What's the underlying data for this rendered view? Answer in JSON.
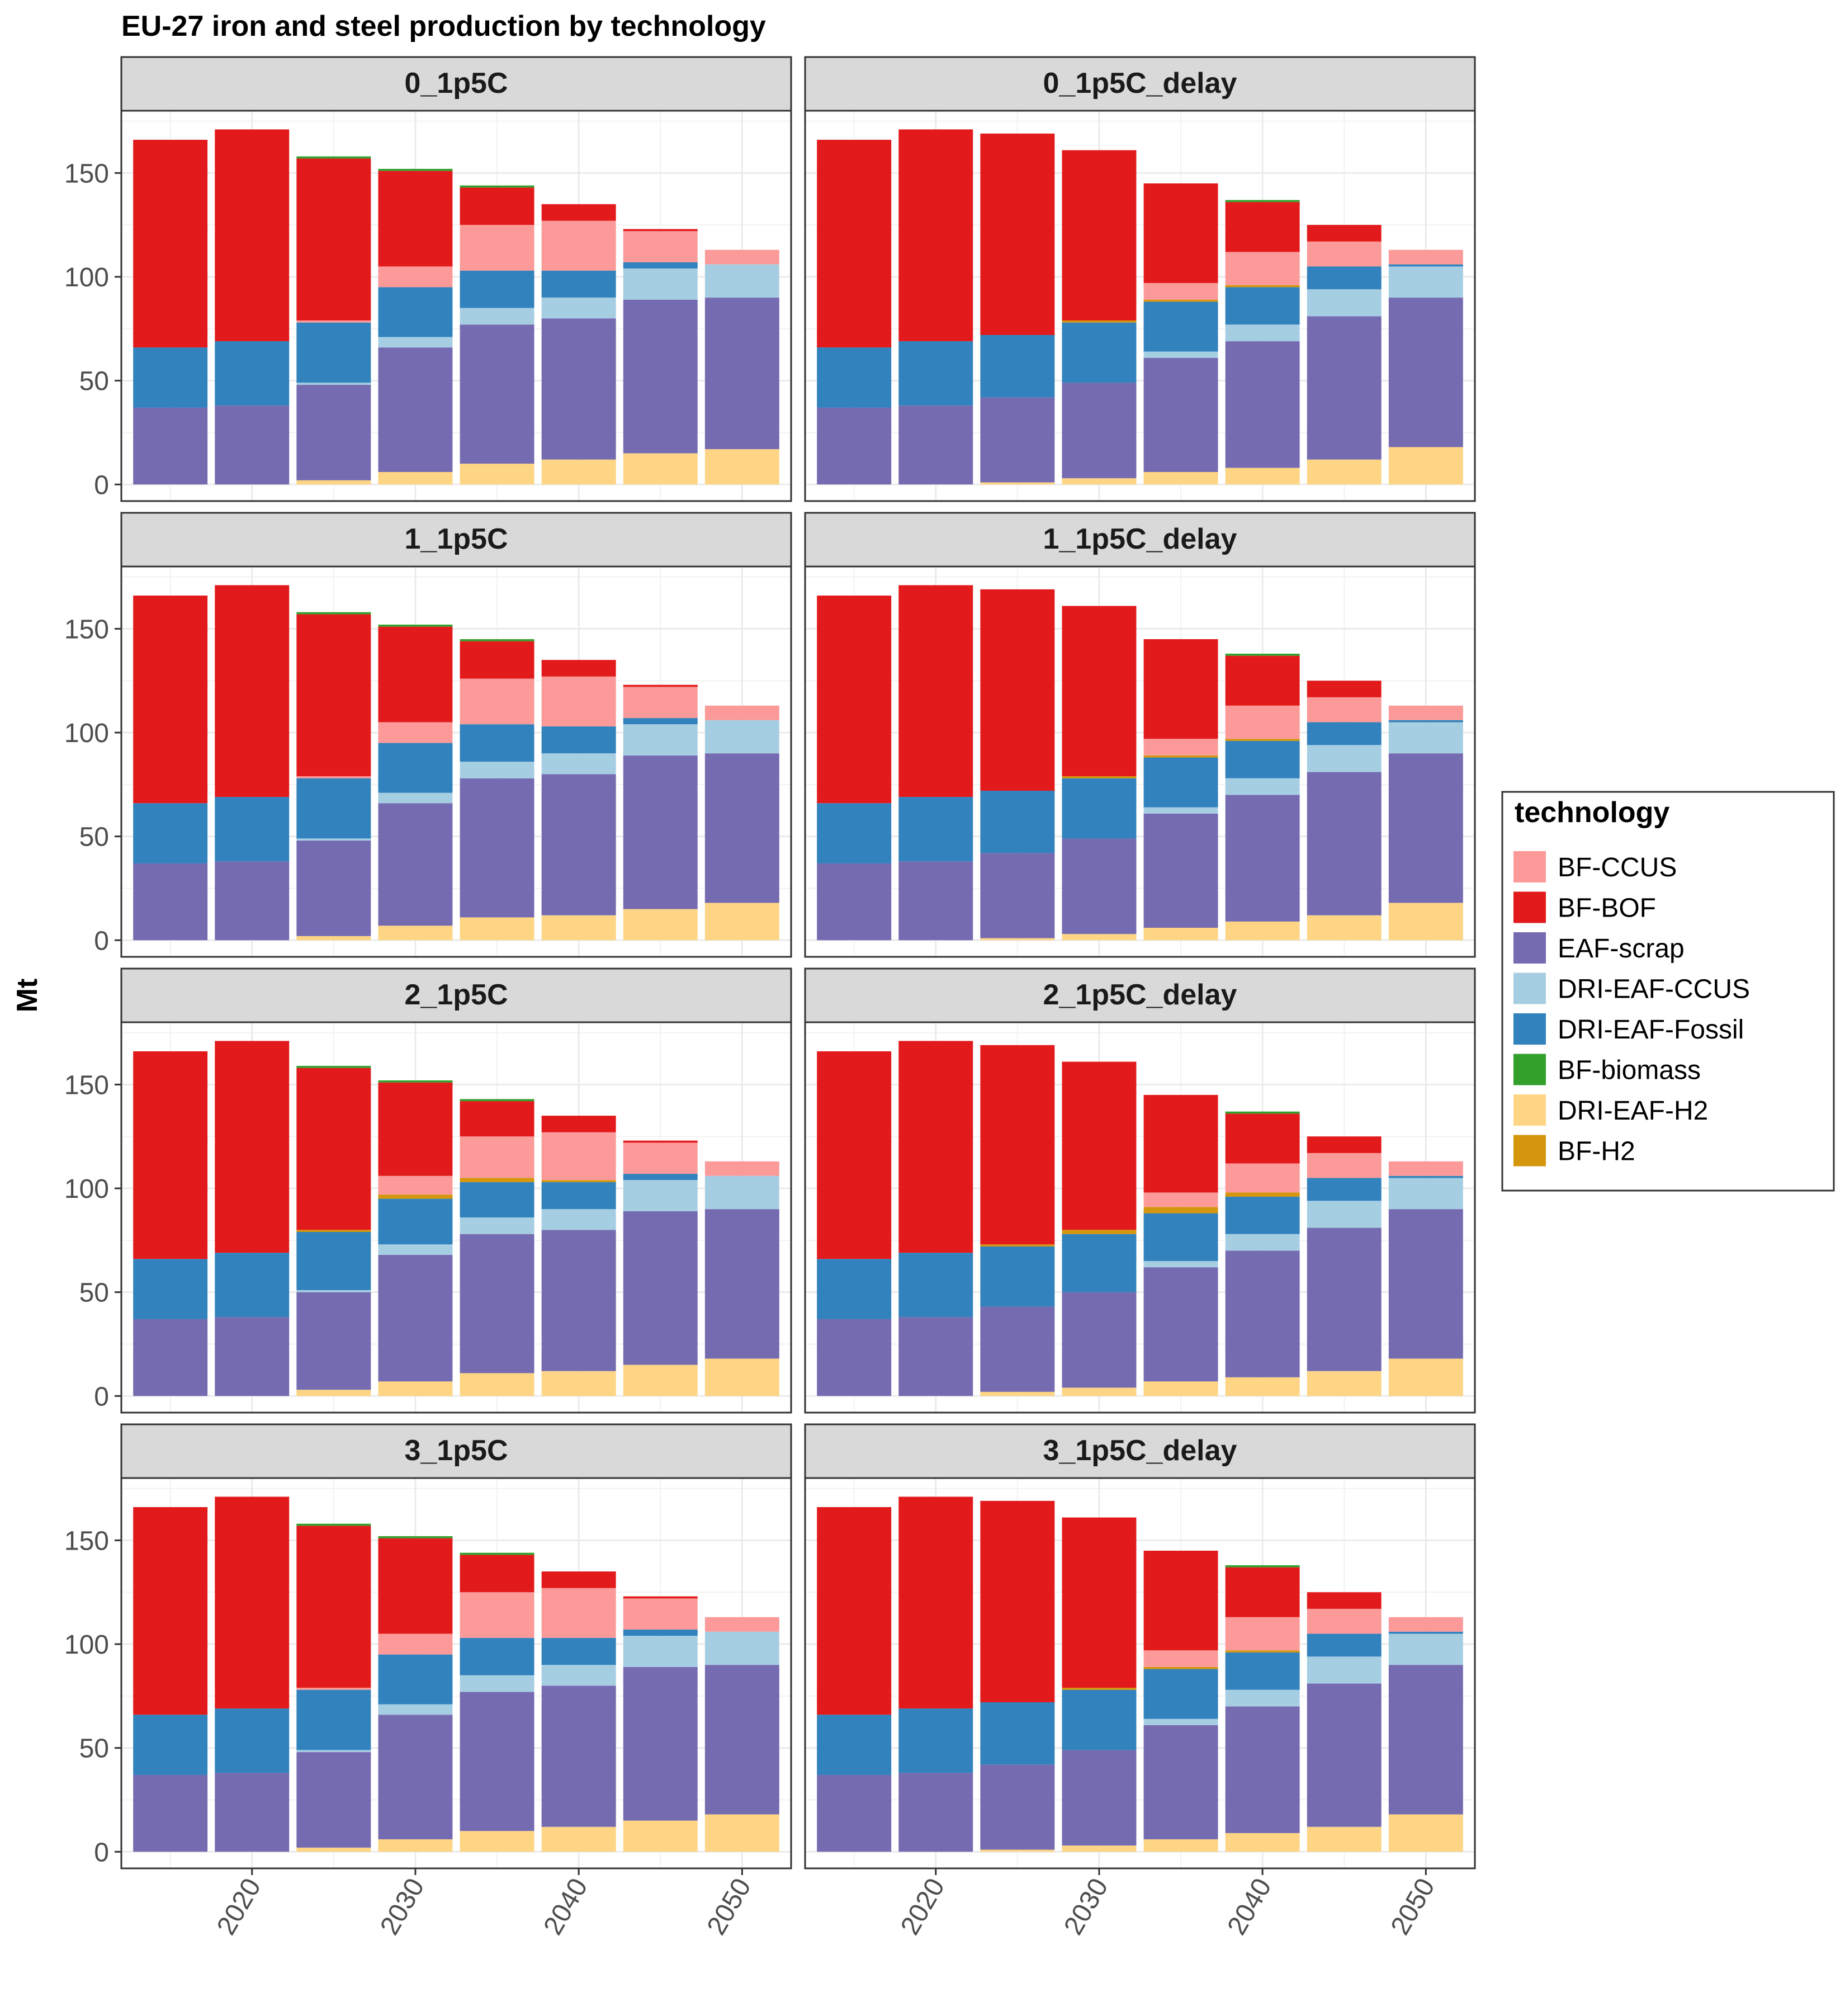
{
  "chart_data": {
    "type": "bar",
    "stacked": true,
    "faceted": true,
    "title": "EU-27 iron and steel production by technology",
    "ylabel": "Mt",
    "xlabel": "",
    "x": [
      2015,
      2020,
      2025,
      2030,
      2035,
      2040,
      2045,
      2050
    ],
    "x_ticks": [
      2020,
      2030,
      2040,
      2050
    ],
    "xlim": [
      2012,
      2053
    ],
    "ylim": [
      -8,
      180
    ],
    "y_ticks": [
      0,
      50,
      100,
      150
    ],
    "grid": true,
    "legend": {
      "title": "technology",
      "position": "right",
      "entries": [
        "BF-CCUS",
        "BF-BOF",
        "EAF-scrap",
        "DRI-EAF-CCUS",
        "DRI-EAF-Fossil",
        "BF-biomass",
        "DRI-EAF-H2",
        "BF-H2"
      ]
    },
    "colors": {
      "BF-CCUS": "#fb9a99",
      "BF-BOF": "#e31a1c",
      "EAF-scrap": "#756bb1",
      "DRI-EAF-CCUS": "#a6cee3",
      "DRI-EAF-Fossil": "#3182bd",
      "BF-biomass": "#33a02c",
      "DRI-EAF-H2": "#fdd584",
      "BF-H2": "#d4960c"
    },
    "stack_order": [
      "DRI-EAF-H2",
      "EAF-scrap",
      "DRI-EAF-CCUS",
      "DRI-EAF-Fossil",
      "BF-H2",
      "BF-CCUS",
      "BF-BOF",
      "BF-biomass"
    ],
    "panels": [
      {
        "name": "0_1p5C",
        "series": {
          "DRI-EAF-H2": [
            0,
            0,
            2,
            6,
            10,
            12,
            15,
            17
          ],
          "EAF-scrap": [
            37,
            38,
            46,
            60,
            67,
            68,
            74,
            73
          ],
          "DRI-EAF-CCUS": [
            0,
            0,
            1,
            5,
            8,
            10,
            15,
            16
          ],
          "DRI-EAF-Fossil": [
            29,
            31,
            29,
            24,
            18,
            13,
            3,
            0
          ],
          "BF-H2": [
            0,
            0,
            0,
            0,
            0,
            0,
            0,
            0
          ],
          "BF-CCUS": [
            0,
            0,
            1,
            10,
            22,
            24,
            15,
            7
          ],
          "BF-BOF": [
            100,
            102,
            78,
            46,
            18,
            8,
            1,
            0
          ],
          "BF-biomass": [
            0,
            0,
            1,
            1,
            1,
            0,
            0,
            0
          ]
        }
      },
      {
        "name": "0_1p5C_delay",
        "series": {
          "DRI-EAF-H2": [
            0,
            0,
            1,
            3,
            6,
            8,
            12,
            18
          ],
          "EAF-scrap": [
            37,
            38,
            41,
            46,
            55,
            61,
            69,
            72
          ],
          "DRI-EAF-CCUS": [
            0,
            0,
            0,
            0,
            3,
            8,
            13,
            15
          ],
          "DRI-EAF-Fossil": [
            29,
            31,
            30,
            29,
            24,
            18,
            11,
            1
          ],
          "BF-H2": [
            0,
            0,
            0,
            1,
            1,
            1,
            0,
            0
          ],
          "BF-CCUS": [
            0,
            0,
            0,
            0,
            8,
            16,
            12,
            7
          ],
          "BF-BOF": [
            100,
            102,
            97,
            82,
            48,
            24,
            8,
            0
          ],
          "BF-biomass": [
            0,
            0,
            0,
            0,
            0,
            1,
            0,
            0
          ]
        }
      },
      {
        "name": "1_1p5C",
        "series": {
          "DRI-EAF-H2": [
            0,
            0,
            2,
            7,
            11,
            12,
            15,
            18
          ],
          "EAF-scrap": [
            37,
            38,
            46,
            59,
            67,
            68,
            74,
            72
          ],
          "DRI-EAF-CCUS": [
            0,
            0,
            1,
            5,
            8,
            10,
            15,
            16
          ],
          "DRI-EAF-Fossil": [
            29,
            31,
            29,
            24,
            18,
            13,
            3,
            0
          ],
          "BF-H2": [
            0,
            0,
            0,
            0,
            0,
            0,
            0,
            0
          ],
          "BF-CCUS": [
            0,
            0,
            1,
            10,
            22,
            24,
            15,
            7
          ],
          "BF-BOF": [
            100,
            102,
            78,
            46,
            18,
            8,
            1,
            0
          ],
          "BF-biomass": [
            0,
            0,
            1,
            1,
            1,
            0,
            0,
            0
          ]
        }
      },
      {
        "name": "1_1p5C_delay",
        "series": {
          "DRI-EAF-H2": [
            0,
            0,
            1,
            3,
            6,
            9,
            12,
            18
          ],
          "EAF-scrap": [
            37,
            38,
            41,
            46,
            55,
            61,
            69,
            72
          ],
          "DRI-EAF-CCUS": [
            0,
            0,
            0,
            0,
            3,
            8,
            13,
            15
          ],
          "DRI-EAF-Fossil": [
            29,
            31,
            30,
            29,
            24,
            18,
            11,
            1
          ],
          "BF-H2": [
            0,
            0,
            0,
            1,
            1,
            1,
            0,
            0
          ],
          "BF-CCUS": [
            0,
            0,
            0,
            0,
            8,
            16,
            12,
            7
          ],
          "BF-BOF": [
            100,
            102,
            97,
            82,
            48,
            24,
            8,
            0
          ],
          "BF-biomass": [
            0,
            0,
            0,
            0,
            0,
            1,
            0,
            0
          ]
        }
      },
      {
        "name": "2_1p5C",
        "series": {
          "DRI-EAF-H2": [
            0,
            0,
            3,
            7,
            11,
            12,
            15,
            18
          ],
          "EAF-scrap": [
            37,
            38,
            47,
            61,
            67,
            68,
            74,
            72
          ],
          "DRI-EAF-CCUS": [
            0,
            0,
            1,
            5,
            8,
            10,
            15,
            16
          ],
          "DRI-EAF-Fossil": [
            29,
            31,
            28,
            22,
            17,
            13,
            3,
            0
          ],
          "BF-H2": [
            0,
            0,
            1,
            2,
            2,
            1,
            0,
            0
          ],
          "BF-CCUS": [
            0,
            0,
            0,
            9,
            20,
            23,
            15,
            7
          ],
          "BF-BOF": [
            100,
            102,
            78,
            45,
            17,
            8,
            1,
            0
          ],
          "BF-biomass": [
            0,
            0,
            1,
            1,
            1,
            0,
            0,
            0
          ]
        }
      },
      {
        "name": "2_1p5C_delay",
        "series": {
          "DRI-EAF-H2": [
            0,
            0,
            2,
            4,
            7,
            9,
            12,
            18
          ],
          "EAF-scrap": [
            37,
            38,
            41,
            46,
            55,
            61,
            69,
            72
          ],
          "DRI-EAF-CCUS": [
            0,
            0,
            0,
            0,
            3,
            8,
            13,
            15
          ],
          "DRI-EAF-Fossil": [
            29,
            31,
            29,
            28,
            23,
            18,
            11,
            1
          ],
          "BF-H2": [
            0,
            0,
            1,
            2,
            3,
            2,
            0,
            0
          ],
          "BF-CCUS": [
            0,
            0,
            0,
            0,
            7,
            14,
            12,
            7
          ],
          "BF-BOF": [
            100,
            102,
            96,
            81,
            47,
            24,
            8,
            0
          ],
          "BF-biomass": [
            0,
            0,
            0,
            0,
            0,
            1,
            0,
            0
          ]
        }
      },
      {
        "name": "3_1p5C",
        "series": {
          "DRI-EAF-H2": [
            0,
            0,
            2,
            6,
            10,
            12,
            15,
            18
          ],
          "EAF-scrap": [
            37,
            38,
            46,
            60,
            67,
            68,
            74,
            72
          ],
          "DRI-EAF-CCUS": [
            0,
            0,
            1,
            5,
            8,
            10,
            15,
            16
          ],
          "DRI-EAF-Fossil": [
            29,
            31,
            29,
            24,
            18,
            13,
            3,
            0
          ],
          "BF-H2": [
            0,
            0,
            0,
            0,
            0,
            0,
            0,
            0
          ],
          "BF-CCUS": [
            0,
            0,
            1,
            10,
            22,
            24,
            15,
            7
          ],
          "BF-BOF": [
            100,
            102,
            78,
            46,
            18,
            8,
            1,
            0
          ],
          "BF-biomass": [
            0,
            0,
            1,
            1,
            1,
            0,
            0,
            0
          ]
        }
      },
      {
        "name": "3_1p5C_delay",
        "series": {
          "DRI-EAF-H2": [
            0,
            0,
            1,
            3,
            6,
            9,
            12,
            18
          ],
          "EAF-scrap": [
            37,
            38,
            41,
            46,
            55,
            61,
            69,
            72
          ],
          "DRI-EAF-CCUS": [
            0,
            0,
            0,
            0,
            3,
            8,
            13,
            15
          ],
          "DRI-EAF-Fossil": [
            29,
            31,
            30,
            29,
            24,
            18,
            11,
            1
          ],
          "BF-H2": [
            0,
            0,
            0,
            1,
            1,
            1,
            0,
            0
          ],
          "BF-CCUS": [
            0,
            0,
            0,
            0,
            8,
            16,
            12,
            7
          ],
          "BF-BOF": [
            100,
            102,
            97,
            82,
            48,
            24,
            8,
            0
          ],
          "BF-biomass": [
            0,
            0,
            0,
            0,
            0,
            1,
            0,
            0
          ]
        }
      }
    ]
  }
}
